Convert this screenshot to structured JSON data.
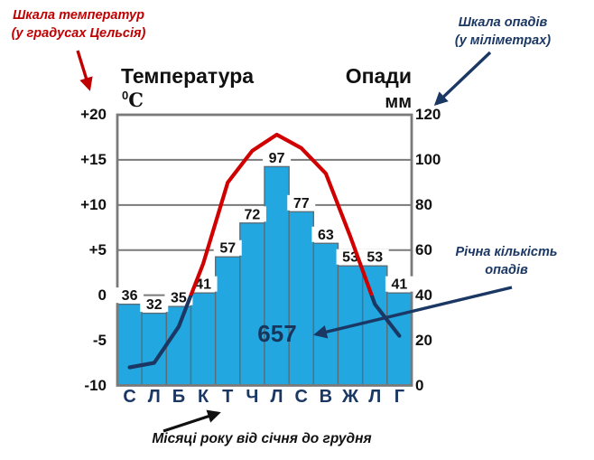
{
  "annotations": {
    "temp_scale": {
      "line1": "Шкала температур",
      "line2": "(у градусах Цельсія)",
      "color": "#C00000"
    },
    "precip_scale": {
      "line1": "Шкала опадів",
      "line2": "(у міліметрах)",
      "color": "#1B3763"
    },
    "annual": {
      "line1": "Річна кількість",
      "line2": "опадів",
      "value": "657"
    },
    "months_note": {
      "text": "Місяці року від січня до грудня"
    }
  },
  "chart_data": {
    "type": "combo",
    "title_left": "Температура",
    "unit_left": {
      "sup": "0",
      "base": "C"
    },
    "title_right": "Опади",
    "unit_right": "мм",
    "categories": [
      "С",
      "Л",
      "Б",
      "К",
      "Т",
      "Ч",
      "Л",
      "С",
      "В",
      "Ж",
      "Л",
      "Г"
    ],
    "series": [
      {
        "name": "Опади, мм",
        "type": "bar",
        "values": [
          36,
          32,
          35,
          41,
          57,
          72,
          97,
          77,
          63,
          53,
          53,
          41
        ],
        "color": "#22A7E0"
      },
      {
        "name": "Температура, °C",
        "type": "line",
        "values": [
          -8,
          -7.5,
          -3.5,
          3.5,
          12.5,
          16,
          17.8,
          16.3,
          13.5,
          6.5,
          -1,
          -4.5
        ],
        "color_above_zero": "#D10000",
        "color_below_zero": "#1B3763"
      }
    ],
    "axis_left": {
      "ticks": [
        "+20",
        "+15",
        "+10",
        "+5",
        "0",
        "-5",
        "-10"
      ],
      "min": -10,
      "max": 20
    },
    "axis_right": {
      "ticks": [
        "120",
        "100",
        "80",
        "60",
        "40",
        "20",
        "0"
      ],
      "min": 0,
      "max": 120
    },
    "annual_total": 657,
    "grid": true,
    "legend": "none"
  }
}
